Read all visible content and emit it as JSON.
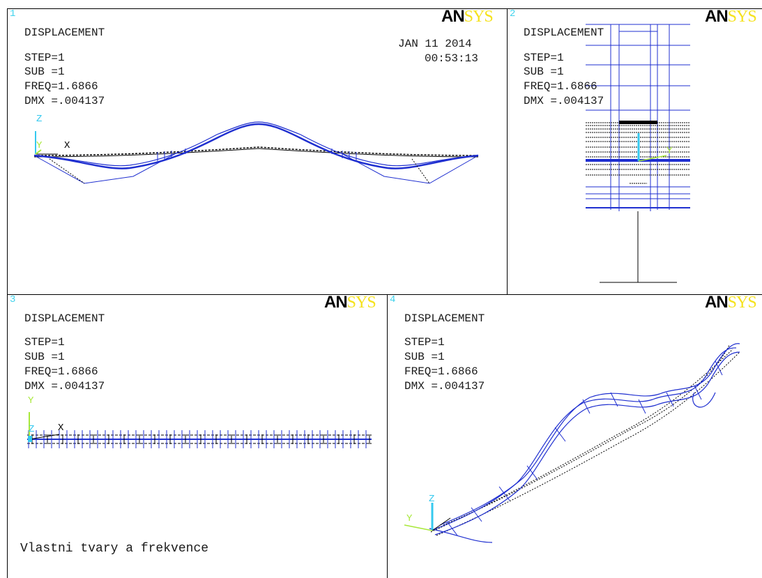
{
  "logo": {
    "part1": "AN",
    "part2": "SYS"
  },
  "panes": [
    {
      "number": "1",
      "title": "DISPLACEMENT",
      "step": "STEP=1",
      "sub": "SUB =1",
      "freq": "FREQ=1.6866",
      "dmx": "DMX =.004137",
      "date": "JAN 11 2014",
      "time": "00:53:13"
    },
    {
      "number": "2",
      "title": "DISPLACEMENT",
      "step": "STEP=1",
      "sub": "SUB =1",
      "freq": "FREQ=1.6866",
      "dmx": "DMX =.004137"
    },
    {
      "number": "3",
      "title": "DISPLACEMENT",
      "step": "STEP=1",
      "sub": "SUB =1",
      "freq": "FREQ=1.6866",
      "dmx": "DMX =.004137",
      "caption": "Vlastni tvary a frekvence"
    },
    {
      "number": "4",
      "title": "DISPLACEMENT",
      "step": "STEP=1",
      "sub": "SUB =1",
      "freq": "FREQ=1.6866",
      "dmx": "DMX =.004137"
    }
  ],
  "axes": {
    "x": "X",
    "y": "Y",
    "z": "Z"
  },
  "colors": {
    "mode_shape": "#1f2fd0",
    "undeformed": "#000000",
    "axis_z": "#35c9ef",
    "axis_y": "#a8e83a",
    "pane_number": "#3fd2ec",
    "logo_sys": "#f5e21e"
  }
}
